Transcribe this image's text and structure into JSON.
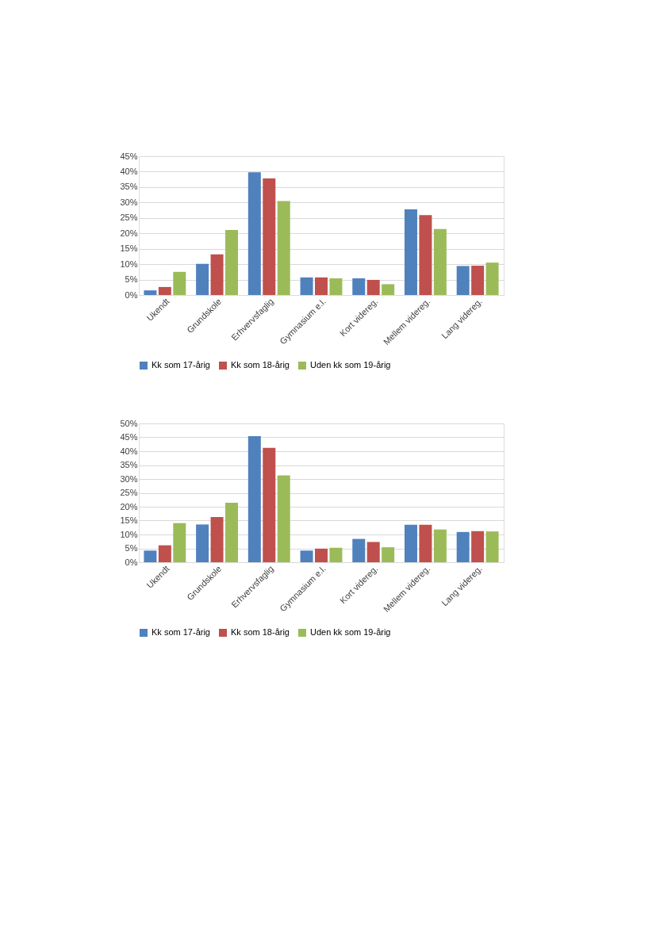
{
  "chart_data": [
    {
      "type": "bar",
      "categories": [
        "Ukendt",
        "Grundskole",
        "Erhvervsfaglig",
        "Gymnasium e.l.",
        "Kort videreg.",
        "Mellem videreg.",
        "Lang videreg."
      ],
      "series": [
        {
          "name": "Kk som 17-årig",
          "color": "#4f81bd",
          "values": [
            1.5,
            10.1,
            39.8,
            5.7,
            5.4,
            27.8,
            9.4
          ]
        },
        {
          "name": "Kk som 18-årig",
          "color": "#c0504d",
          "values": [
            2.6,
            13.2,
            37.8,
            5.7,
            4.9,
            25.9,
            9.5
          ]
        },
        {
          "name": "Uden kk som 19-årig",
          "color": "#9bbb59",
          "values": [
            7.5,
            21.1,
            30.5,
            5.4,
            3.5,
            21.4,
            10.5
          ]
        }
      ],
      "ylim": [
        0,
        45
      ],
      "yticks": [
        {
          "value": 0,
          "label": "0%"
        },
        {
          "value": 5,
          "label": "5%"
        },
        {
          "value": 10,
          "label": "10%"
        },
        {
          "value": 15,
          "label": "15%"
        },
        {
          "value": 20,
          "label": "20%"
        },
        {
          "value": 25,
          "label": "25%"
        },
        {
          "value": 30,
          "label": "30%"
        },
        {
          "value": 35,
          "label": "35%"
        },
        {
          "value": 40,
          "label": "40%"
        },
        {
          "value": 45,
          "label": "45%"
        }
      ],
      "grid": "y",
      "legend": "bottom"
    },
    {
      "type": "bar",
      "categories": [
        "Ukendt",
        "Grundskole",
        "Erhvervsfaglig",
        "Gymnasium e.l.",
        "Kort videreg.",
        "Mellem videreg.",
        "Lang videreg."
      ],
      "series": [
        {
          "name": "Kk som 17-årig",
          "color": "#4f81bd",
          "values": [
            4.2,
            13.6,
            45.4,
            4.2,
            8.4,
            13.5,
            10.9
          ]
        },
        {
          "name": "Kk som 18-årig",
          "color": "#c0504d",
          "values": [
            6.1,
            16.3,
            41.2,
            4.9,
            7.3,
            13.5,
            11.2
          ]
        },
        {
          "name": "Uden kk som 19-årig",
          "color": "#9bbb59",
          "values": [
            14.1,
            21.4,
            31.3,
            5.2,
            5.4,
            11.8,
            11.1
          ]
        }
      ],
      "ylim": [
        0,
        50
      ],
      "yticks": [
        {
          "value": 0,
          "label": "0%"
        },
        {
          "value": 5,
          "label": "5%"
        },
        {
          "value": 10,
          "label": "10%"
        },
        {
          "value": 15,
          "label": "15%"
        },
        {
          "value": 20,
          "label": "20%"
        },
        {
          "value": 25,
          "label": "25%"
        },
        {
          "value": 30,
          "label": "30%"
        },
        {
          "value": 35,
          "label": "35%"
        },
        {
          "value": 40,
          "label": "40%"
        },
        {
          "value": 45,
          "label": "45%"
        },
        {
          "value": 50,
          "label": "50%"
        }
      ],
      "grid": "y",
      "legend": "bottom"
    }
  ]
}
